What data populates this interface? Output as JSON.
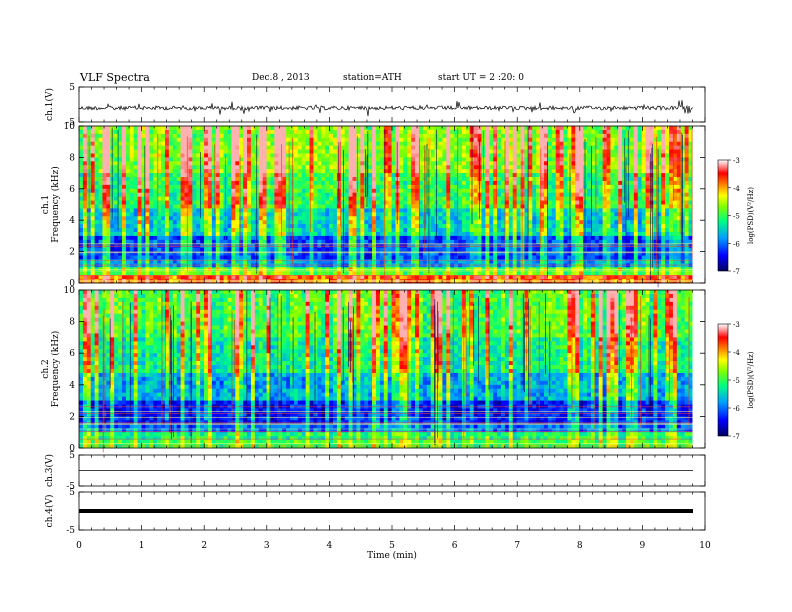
{
  "header": {
    "title": "VLF  Spectra",
    "date": "Dec.8  , 2013",
    "station": "station=ATH",
    "start": "start  UT  =   2  :20: 0"
  },
  "colors": {
    "spectrogram_low": "#0000a0",
    "spectrogram_mid": "#00e080",
    "spectrogram_high": "#ff2000",
    "trace": "#000000"
  },
  "chart_data": [
    {
      "name": "ch1-waveform",
      "type": "line",
      "ylabel": "ch.1(V)",
      "ylim": [
        -5,
        5
      ],
      "yticks": [
        "5",
        "-5"
      ],
      "xlim": [
        0,
        10
      ],
      "description_level": "noisy waveform around -1 V with spikes"
    },
    {
      "name": "ch1-spectrogram",
      "type": "heatmap",
      "ylabel": "Frequency  (kHz)",
      "ylabel_prefix": "ch.1",
      "ylim": [
        0,
        10
      ],
      "yticks": [
        "0",
        "2",
        "4",
        "6",
        "8",
        "10"
      ],
      "xlim": [
        0,
        9.8
      ],
      "colorbar": {
        "label": "log(PSD)(V²/Hz)",
        "range": [
          -7,
          -3
        ],
        "ticks": [
          "-3",
          "-4",
          "-5",
          "-6",
          "-7"
        ]
      }
    },
    {
      "name": "ch2-spectrogram",
      "type": "heatmap",
      "ylabel": "Frequency  (kHz)",
      "ylabel_prefix": "ch.2",
      "ylim": [
        0,
        10
      ],
      "yticks": [
        "0",
        "2",
        "4",
        "6",
        "8",
        "10"
      ],
      "xlim": [
        0,
        9.8
      ],
      "colorbar": {
        "label": "log(PSD)(V²/Hz)",
        "range": [
          -7,
          -3
        ],
        "ticks": [
          "-3",
          "-4",
          "-5",
          "-6",
          "-7"
        ]
      }
    },
    {
      "name": "ch3-waveform",
      "type": "line",
      "ylabel": "ch.3(V)",
      "ylim": [
        -5,
        5
      ],
      "yticks": [
        "5",
        "-5"
      ],
      "xlim": [
        0,
        10
      ]
    },
    {
      "name": "ch4-waveform",
      "type": "line",
      "ylabel": "ch.4(V)",
      "ylim": [
        -5,
        5
      ],
      "yticks": [
        "5",
        "-5"
      ],
      "xlim": [
        0,
        10
      ]
    }
  ],
  "xaxis": {
    "label": "Time  (min)",
    "range": [
      0,
      10
    ],
    "ticks": [
      "0",
      "1",
      "2",
      "3",
      "4",
      "5",
      "6",
      "7",
      "8",
      "9",
      "10"
    ]
  }
}
